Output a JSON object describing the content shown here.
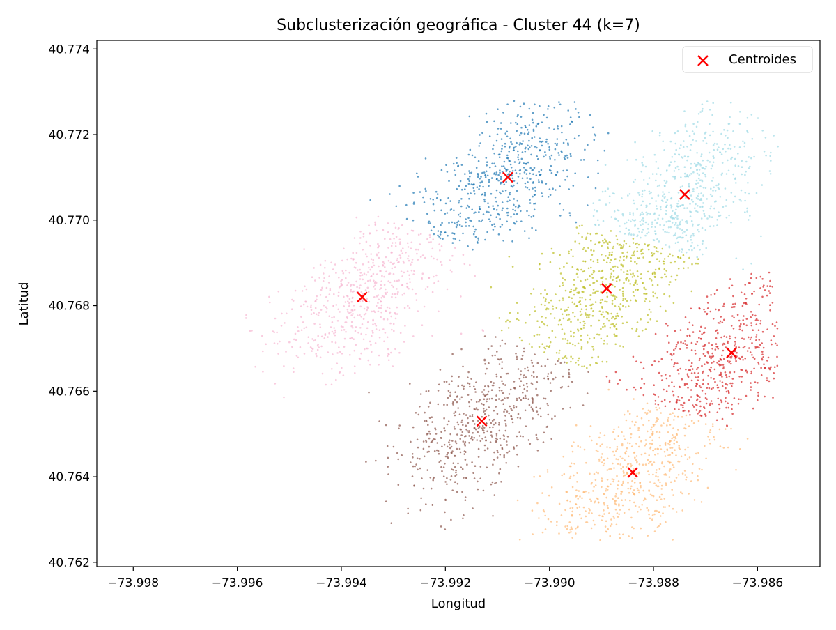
{
  "chart_data": {
    "type": "scatter",
    "title": "Subclusterización geográfica - Cluster 44 (k=7)",
    "xlabel": "Longitud",
    "ylabel": "Latitud",
    "xlim": [
      -73.9987,
      -73.9848
    ],
    "ylim": [
      40.7619,
      40.7742
    ],
    "xticks": [
      -73.998,
      -73.996,
      -73.994,
      -73.992,
      -73.99,
      -73.988,
      -73.986
    ],
    "xtick_labels": [
      "−73.998",
      "−73.996",
      "−73.994",
      "−73.992",
      "−73.990",
      "−73.988",
      "−73.986"
    ],
    "yticks": [
      40.762,
      40.764,
      40.766,
      40.768,
      40.77,
      40.772,
      40.774
    ],
    "ytick_labels": [
      "40.762",
      "40.764",
      "40.766",
      "40.768",
      "40.770",
      "40.772",
      "40.774"
    ],
    "grid": false,
    "legend": {
      "placement": "top-right",
      "entries": [
        "Centroides"
      ]
    },
    "clusters": [
      {
        "color": "#1f77b4",
        "centroid": [
          -73.9908,
          40.771
        ]
      },
      {
        "color": "#9edae5",
        "centroid": [
          -73.9874,
          40.7706
        ]
      },
      {
        "color": "#f7b6d2",
        "centroid": [
          -73.9936,
          40.7682
        ]
      },
      {
        "color": "#bcbd22",
        "centroid": [
          -73.9889,
          40.7684
        ]
      },
      {
        "color": "#d62728",
        "centroid": [
          -73.9865,
          40.7669
        ]
      },
      {
        "color": "#8c564b",
        "centroid": [
          -73.9913,
          40.7653
        ]
      },
      {
        "color": "#ffbb78",
        "centroid": [
          -73.9884,
          40.7641
        ]
      }
    ],
    "centroid_marker": {
      "shape": "x",
      "color": "#ff0000"
    }
  }
}
